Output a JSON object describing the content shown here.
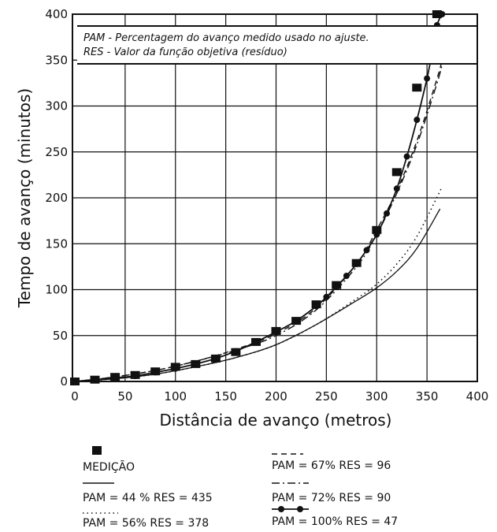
{
  "chart_data": {
    "type": "line",
    "xlabel": "Distância de avanço (metros)",
    "ylabel": "Tempo de avanço (minutos)",
    "xlim": [
      0,
      400
    ],
    "ylim": [
      0,
      400
    ],
    "x_ticks": [
      "0",
      "50",
      "100",
      "150",
      "200",
      "250",
      "300",
      "350",
      "400"
    ],
    "y_ticks": [
      "0",
      "50",
      "100",
      "150",
      "200",
      "250",
      "300",
      "350",
      "400"
    ],
    "grid": true,
    "annotations": [
      "PAM - Percentagem do avanço medido usado no ajuste.",
      "RES - Valor da função objetiva (resíduo)"
    ],
    "series": [
      {
        "name": "MEDIÇÃO",
        "style": "square-markers",
        "x": [
          0,
          20,
          40,
          60,
          80,
          100,
          120,
          140,
          160,
          180,
          200,
          220,
          240,
          260,
          280,
          300,
          320,
          340,
          360
        ],
        "y": [
          0,
          2,
          5,
          7,
          11,
          16,
          19,
          25,
          32,
          43,
          55,
          66,
          84,
          105,
          129,
          165,
          228,
          320,
          400
        ]
      },
      {
        "name": "PAM = 44 % RES = 435",
        "style": "solid",
        "x": [
          0,
          40,
          80,
          120,
          160,
          200,
          240,
          280,
          300,
          320,
          340,
          363
        ],
        "y": [
          0,
          3,
          8,
          16,
          26,
          40,
          62,
          88,
          102,
          120,
          145,
          188
        ]
      },
      {
        "name": "PAM = 56% RES = 378",
        "style": "dotted",
        "x": [
          0,
          40,
          80,
          120,
          160,
          200,
          240,
          280,
          300,
          320,
          340,
          365
        ],
        "y": [
          0,
          3,
          8,
          16,
          26,
          40,
          62,
          90,
          106,
          128,
          158,
          212
        ]
      },
      {
        "name": "PAM = 67% RES = 96",
        "style": "dashed",
        "x": [
          0,
          40,
          80,
          120,
          160,
          200,
          240,
          280,
          300,
          320,
          340,
          360,
          365
        ],
        "y": [
          0,
          5,
          12,
          22,
          35,
          52,
          80,
          128,
          165,
          208,
          262,
          330,
          350
        ]
      },
      {
        "name": "PAM = 72% RES = 90",
        "style": "dash-dot",
        "x": [
          0,
          40,
          80,
          120,
          160,
          200,
          240,
          280,
          300,
          320,
          340,
          360,
          365
        ],
        "y": [
          0,
          5,
          12,
          22,
          34,
          50,
          78,
          125,
          160,
          205,
          258,
          325,
          345
        ]
      },
      {
        "name": "PAM = 100% RES = 47",
        "style": "solid-dots",
        "x": [
          0,
          20,
          40,
          60,
          80,
          100,
          120,
          140,
          160,
          180,
          200,
          220,
          240,
          250,
          260,
          270,
          280,
          290,
          300,
          310,
          320,
          330,
          340,
          350,
          355,
          360,
          365
        ],
        "y": [
          0,
          2,
          4,
          6,
          10,
          14,
          19,
          25,
          33,
          43,
          54,
          66,
          82,
          92,
          103,
          115,
          128,
          143,
          160,
          183,
          210,
          245,
          285,
          330,
          358,
          388,
          400
        ]
      }
    ]
  },
  "legend": {
    "medicao": "MEDIÇÃO",
    "pam44": "PAM = 44 % RES = 435",
    "pam56": "PAM = 56% RES = 378",
    "pam67": "PAM = 67% RES = 96",
    "pam72": "PAM = 72% RES = 90",
    "pam100": "PAM = 100% RES = 47"
  }
}
